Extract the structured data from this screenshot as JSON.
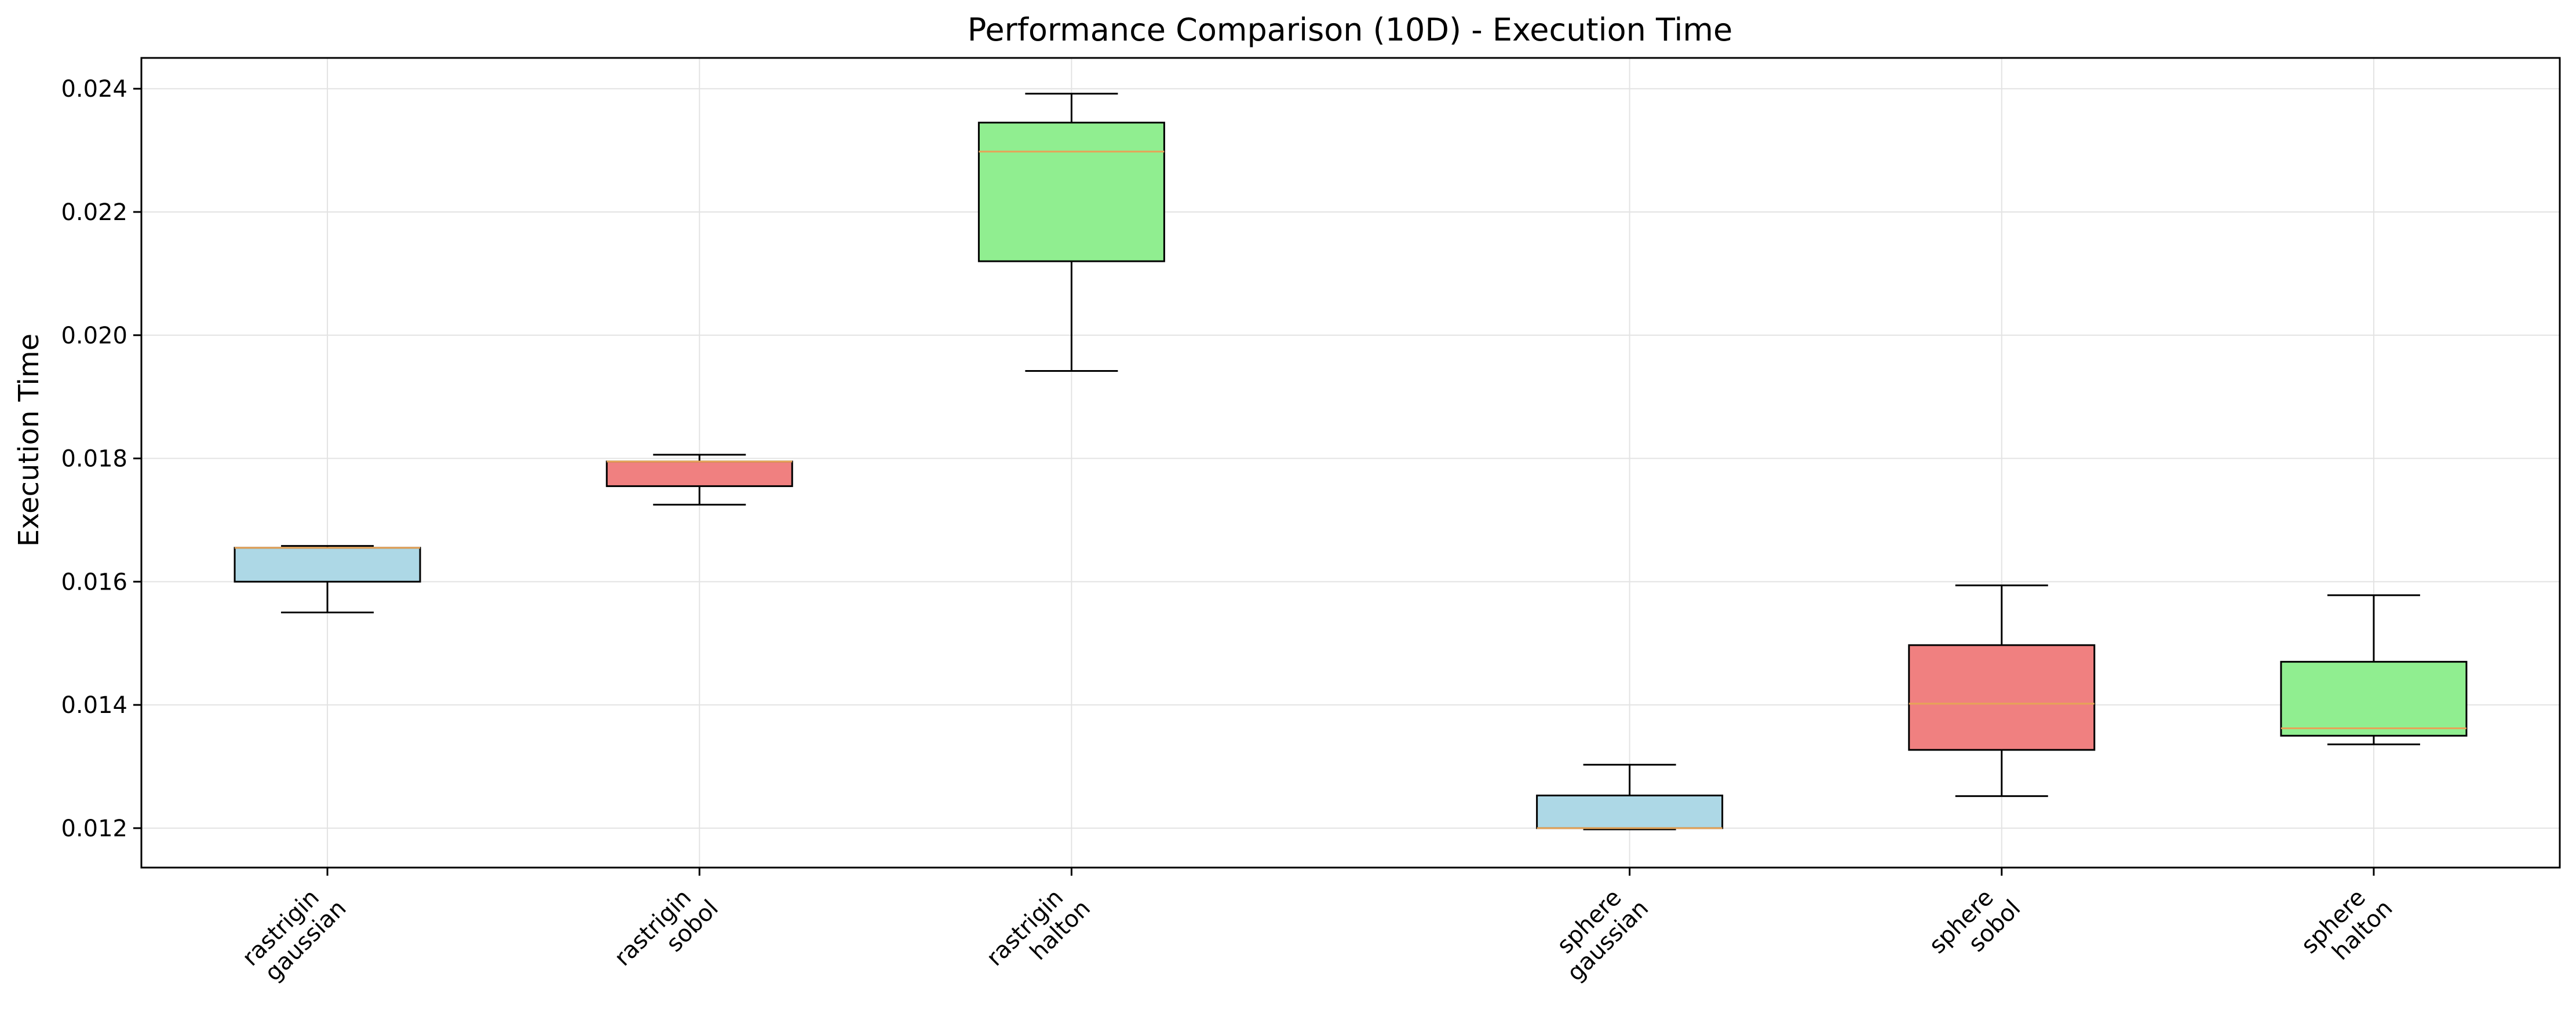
{
  "chart_data": {
    "type": "box",
    "title": "Performance Comparison (10D) - Execution Time",
    "xlabel": "",
    "ylabel": "Execution Time",
    "ylim": [
      0.01136,
      0.0245
    ],
    "yticks": [
      "0.012",
      "0.014",
      "0.016",
      "0.018",
      "0.020",
      "0.022",
      "0.024"
    ],
    "grid": true,
    "categories": [
      {
        "line1": "rastrigin",
        "line2": "gaussian"
      },
      {
        "line1": "rastrigin",
        "line2": "sobol"
      },
      {
        "line1": "rastrigin",
        "line2": "halton"
      },
      {
        "line1": "sphere",
        "line2": "gaussian"
      },
      {
        "line1": "sphere",
        "line2": "sobol"
      },
      {
        "line1": "sphere",
        "line2": "halton"
      }
    ],
    "x": [
      1,
      2,
      3,
      4.5,
      5.5,
      6.5
    ],
    "boxes": [
      {
        "whisker_low": 0.0155,
        "q1": 0.016,
        "median": 0.01655,
        "q3": 0.01655,
        "whisker_high": 0.01658,
        "color": "#add8e6"
      },
      {
        "whisker_low": 0.01725,
        "q1": 0.01755,
        "median": 0.01795,
        "q3": 0.01795,
        "whisker_high": 0.01806,
        "color": "#f08080"
      },
      {
        "whisker_low": 0.01942,
        "q1": 0.0212,
        "median": 0.02298,
        "q3": 0.02345,
        "whisker_high": 0.02392,
        "color": "#90ee90"
      },
      {
        "whisker_low": 0.01198,
        "q1": 0.012,
        "median": 0.012,
        "q3": 0.01253,
        "whisker_high": 0.01303,
        "color": "#add8e6"
      },
      {
        "whisker_low": 0.01252,
        "q1": 0.01327,
        "median": 0.01402,
        "q3": 0.01497,
        "whisker_high": 0.01594,
        "color": "#f08080"
      },
      {
        "whisker_low": 0.01336,
        "q1": 0.0135,
        "median": 0.01362,
        "q3": 0.0147,
        "whisker_high": 0.01578,
        "color": "#90ee90"
      }
    ],
    "median_color": "#e6a357",
    "legend": "none"
  }
}
